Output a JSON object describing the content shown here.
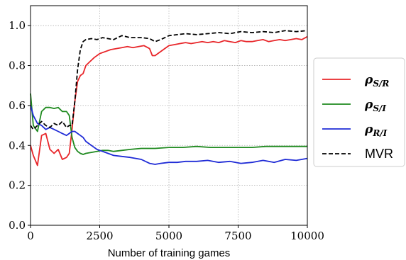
{
  "chart_data": {
    "type": "line",
    "xlabel": "Number of training games",
    "ylabel": "",
    "xlim": [
      0,
      10000
    ],
    "ylim": [
      0,
      1.1
    ],
    "xticks": [
      0,
      2500,
      5000,
      7500,
      10000
    ],
    "xtick_labels": [
      "0",
      "2500",
      "5000",
      "7500",
      "10000"
    ],
    "yticks": [
      0.0,
      0.2,
      0.4,
      0.6,
      0.8,
      1.0
    ],
    "ytick_labels": [
      "0.0",
      "0.2",
      "0.4",
      "0.6",
      "0.8",
      "1.0"
    ],
    "grid": true,
    "legend_position": "right-outside",
    "series": [
      {
        "name": "ρ",
        "subscript": "S/R",
        "color": "#e8262a",
        "dash": "solid",
        "x": [
          0,
          100,
          250,
          400,
          550,
          700,
          850,
          1000,
          1150,
          1300,
          1400,
          1500,
          1600,
          1700,
          1800,
          1900,
          2000,
          2150,
          2300,
          2500,
          2700,
          2900,
          3100,
          3300,
          3500,
          3700,
          3900,
          4100,
          4300,
          4400,
          4500,
          4600,
          4800,
          5000,
          5200,
          5400,
          5600,
          5800,
          6000,
          6200,
          6400,
          6600,
          6800,
          7000,
          7200,
          7400,
          7600,
          7800,
          8000,
          8200,
          8400,
          8600,
          8800,
          9000,
          9200,
          9400,
          9600,
          9800,
          10000
        ],
        "y": [
          0.4,
          0.35,
          0.3,
          0.45,
          0.46,
          0.38,
          0.36,
          0.38,
          0.33,
          0.34,
          0.36,
          0.48,
          0.62,
          0.72,
          0.75,
          0.76,
          0.8,
          0.82,
          0.84,
          0.86,
          0.87,
          0.88,
          0.885,
          0.89,
          0.895,
          0.89,
          0.895,
          0.9,
          0.885,
          0.85,
          0.85,
          0.86,
          0.88,
          0.9,
          0.905,
          0.91,
          0.915,
          0.91,
          0.915,
          0.92,
          0.915,
          0.92,
          0.915,
          0.925,
          0.92,
          0.915,
          0.925,
          0.92,
          0.92,
          0.925,
          0.93,
          0.92,
          0.925,
          0.93,
          0.925,
          0.93,
          0.935,
          0.93,
          0.945
        ]
      },
      {
        "name": "ρ",
        "subscript": "S/I",
        "color": "#1f8a1f",
        "dash": "solid",
        "x": [
          0,
          100,
          250,
          400,
          550,
          700,
          850,
          1000,
          1150,
          1300,
          1400,
          1500,
          1600,
          1700,
          1800,
          1900,
          2000,
          2200,
          2400,
          2600,
          2800,
          3000,
          3300,
          3600,
          4000,
          4500,
          5000,
          5500,
          6000,
          6500,
          7000,
          7500,
          8000,
          8500,
          9000,
          9500,
          10000
        ],
        "y": [
          0.66,
          0.5,
          0.47,
          0.57,
          0.59,
          0.59,
          0.585,
          0.59,
          0.57,
          0.57,
          0.55,
          0.44,
          0.39,
          0.37,
          0.36,
          0.355,
          0.36,
          0.365,
          0.37,
          0.375,
          0.375,
          0.37,
          0.375,
          0.38,
          0.385,
          0.385,
          0.39,
          0.39,
          0.395,
          0.39,
          0.39,
          0.39,
          0.39,
          0.395,
          0.395,
          0.395,
          0.395
        ]
      },
      {
        "name": "ρ",
        "subscript": "R/I",
        "color": "#1f2bd6",
        "dash": "solid",
        "x": [
          0,
          100,
          250,
          400,
          550,
          700,
          850,
          1000,
          1150,
          1300,
          1400,
          1500,
          1600,
          1700,
          1800,
          1900,
          2000,
          2200,
          2400,
          2600,
          2800,
          3000,
          3300,
          3600,
          4000,
          4300,
          4500,
          4700,
          5000,
          5300,
          5600,
          6000,
          6400,
          6800,
          7200,
          7600,
          8000,
          8400,
          8800,
          9200,
          9600,
          10000
        ],
        "y": [
          0.6,
          0.55,
          0.51,
          0.5,
          0.48,
          0.49,
          0.48,
          0.47,
          0.46,
          0.45,
          0.46,
          0.47,
          0.47,
          0.46,
          0.45,
          0.44,
          0.42,
          0.4,
          0.38,
          0.37,
          0.36,
          0.35,
          0.345,
          0.34,
          0.33,
          0.31,
          0.305,
          0.31,
          0.315,
          0.315,
          0.32,
          0.32,
          0.325,
          0.315,
          0.32,
          0.31,
          0.315,
          0.325,
          0.315,
          0.33,
          0.325,
          0.335
        ]
      },
      {
        "name": "MVR",
        "subscript": "",
        "color": "#000000",
        "dash": "dashed",
        "x": [
          0,
          100,
          250,
          400,
          550,
          700,
          850,
          1000,
          1150,
          1300,
          1400,
          1500,
          1600,
          1700,
          1800,
          1900,
          2000,
          2200,
          2400,
          2600,
          2800,
          3000,
          3300,
          3600,
          4000,
          4300,
          4500,
          4700,
          5000,
          5300,
          5600,
          6000,
          6400,
          6800,
          7200,
          7600,
          8000,
          8400,
          8800,
          9200,
          9600,
          10000
        ],
        "y": [
          0.5,
          0.48,
          0.5,
          0.52,
          0.5,
          0.49,
          0.51,
          0.5,
          0.52,
          0.49,
          0.5,
          0.5,
          0.62,
          0.78,
          0.88,
          0.92,
          0.93,
          0.935,
          0.93,
          0.94,
          0.935,
          0.93,
          0.95,
          0.94,
          0.94,
          0.935,
          0.92,
          0.93,
          0.95,
          0.955,
          0.96,
          0.955,
          0.96,
          0.965,
          0.96,
          0.97,
          0.965,
          0.97,
          0.965,
          0.975,
          0.97,
          0.975
        ]
      }
    ]
  }
}
